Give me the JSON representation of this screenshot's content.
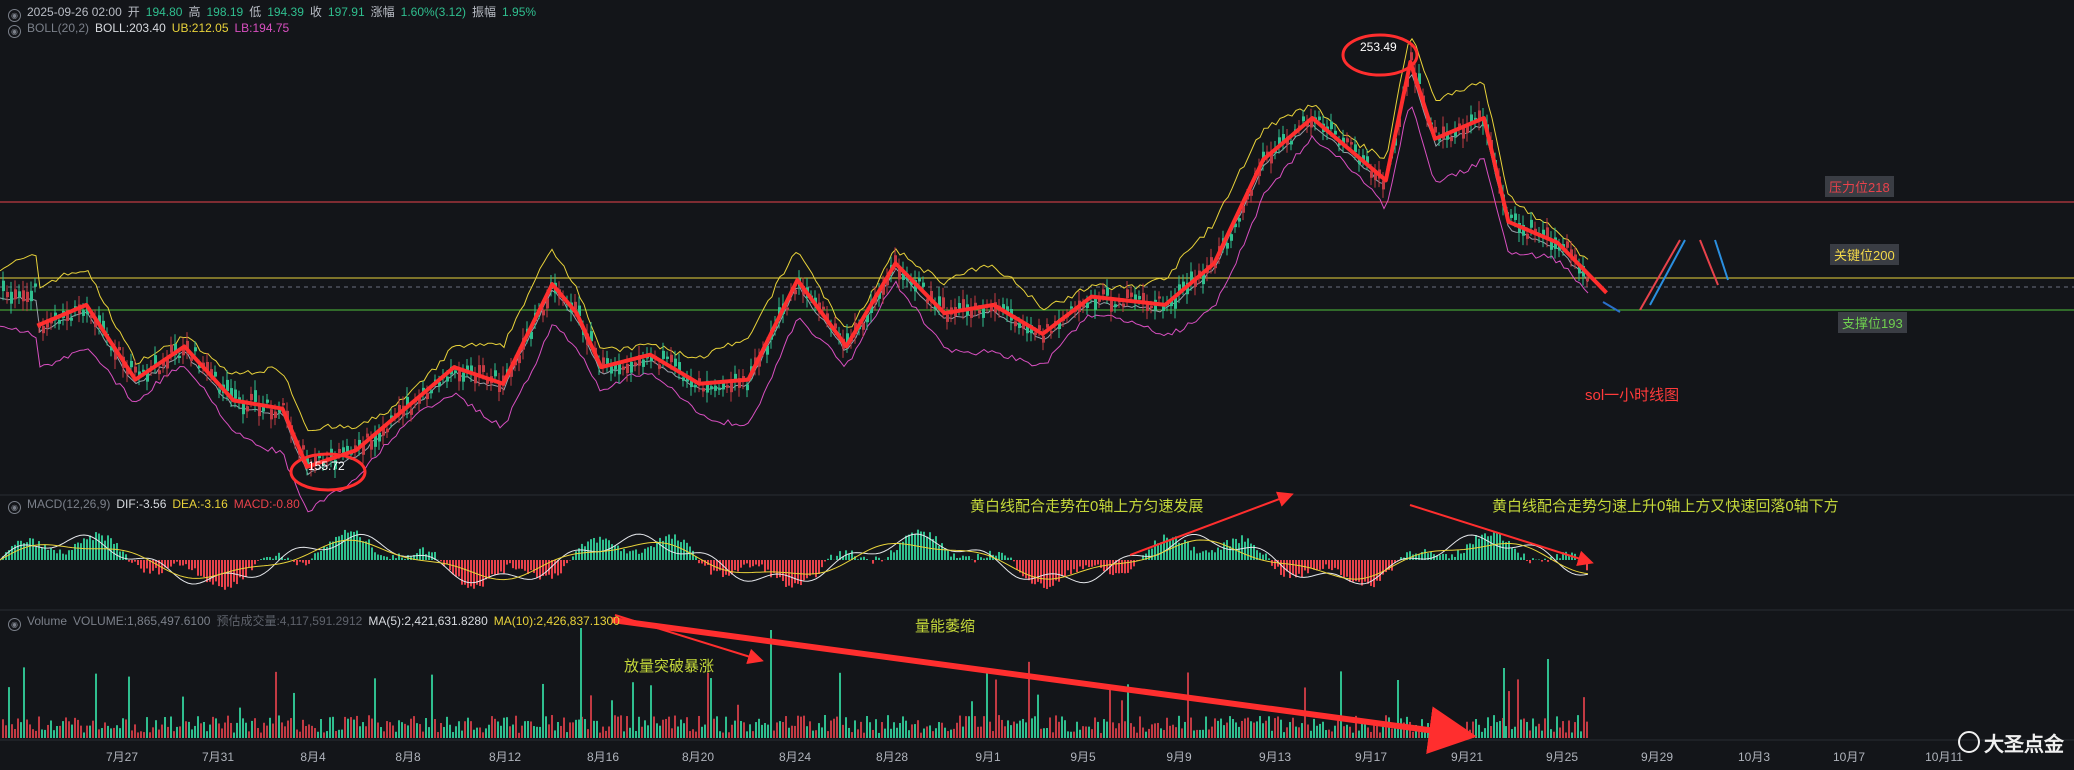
{
  "header": {
    "row1": {
      "datetime": "2025-09-26 02:00",
      "open_label": "开",
      "open": "194.80",
      "high_label": "高",
      "high": "198.19",
      "low_label": "低",
      "low": "194.39",
      "close_label": "收",
      "close": "197.91",
      "change_label": "涨幅",
      "change": "1.60%(3.12)",
      "amp_label": "振幅",
      "amp": "1.95%"
    },
    "row2": {
      "name": "BOLL(20,2)",
      "boll": "BOLL:203.40",
      "ub": "UB:212.05",
      "lb": "LB:194.75"
    },
    "macd": {
      "name": "MACD(12,26,9)",
      "dif": "DIF:-3.56",
      "dea": "DEA:-3.16",
      "macd": "MACD:-0.80"
    },
    "volume": {
      "name": "Volume",
      "vol": "VOLUME:1,865,497.6100",
      "est": "预估成交量:4,117,591.2912",
      "ma5": "MA(5):2,421,631.8280",
      "ma10": "MA(10):2,426,837.1300"
    }
  },
  "levels": {
    "resistance": "压力位218",
    "key": "关键位200",
    "support": "支撑位193"
  },
  "annotations": {
    "chart_title": "sol一小时线图",
    "high_label": "253.49",
    "low_label": "155.72",
    "macd_note1": "黄白线配合走势在0轴上方匀速发展",
    "macd_note2": "黄白线配合走势匀速上升0轴上方又快速回落0轴下方",
    "vol_note1": "量能萎缩",
    "vol_note2": "放量突破暴涨"
  },
  "brand": "大圣点金",
  "colors": {
    "bg": "#131519",
    "up": "#2fbf8f",
    "down": "#e8424b",
    "mark": "#ff2e2e",
    "ub": "#e8d23a",
    "lb": "#d84fc0",
    "mid": "#d8dbe0",
    "resist": "#e8424b",
    "key": "#e8d23a",
    "support": "#4fbf3a",
    "note": "#c5d93a"
  },
  "chart_data": {
    "type": "line",
    "title": "sol一小时线图",
    "x_ticks": [
      "7月27",
      "7月31",
      "8月4",
      "8月8",
      "8月12",
      "8月16",
      "8月20",
      "8月24",
      "8月28",
      "9月1",
      "9月5",
      "9月9",
      "9月13",
      "9月17",
      "9月21",
      "9月25",
      "9月29",
      "10月3",
      "10月7",
      "10月11"
    ],
    "price_trend": {
      "x": [
        "7月24",
        "7月26",
        "7月28",
        "7月30",
        "8月1",
        "8月3",
        "8月4",
        "8月6",
        "8月8",
        "8月10",
        "8月12",
        "8月14",
        "8月15",
        "8月16",
        "8月18",
        "8月20",
        "8月22",
        "8月24",
        "8月26",
        "8月28",
        "8月30",
        "9月1",
        "9月3",
        "9月5",
        "9月8",
        "9月10",
        "9月12",
        "9月14",
        "9月17",
        "9月18",
        "9月19",
        "9月21",
        "9月22",
        "9月24",
        "9月26"
      ],
      "y": [
        190,
        195,
        177,
        185,
        172,
        170,
        156,
        160,
        170,
        180,
        176,
        200,
        193,
        180,
        183,
        176,
        177,
        201,
        185,
        205,
        193,
        195,
        188,
        197,
        195,
        205,
        230,
        240,
        225,
        253.49,
        235,
        240,
        215,
        210,
        197.91
      ]
    },
    "levels": [
      {
        "name": "压力位218",
        "value": 218
      },
      {
        "name": "关键位200",
        "value": 200
      },
      {
        "name": "支撑位193",
        "value": 193
      }
    ],
    "high": 253.49,
    "low": 155.72,
    "macd": {
      "dif": -3.56,
      "dea": -3.16,
      "macd": -0.8
    },
    "volume": {
      "volume": 1865497.61,
      "ma5": 2421631.828,
      "ma10": 2426837.13
    }
  }
}
